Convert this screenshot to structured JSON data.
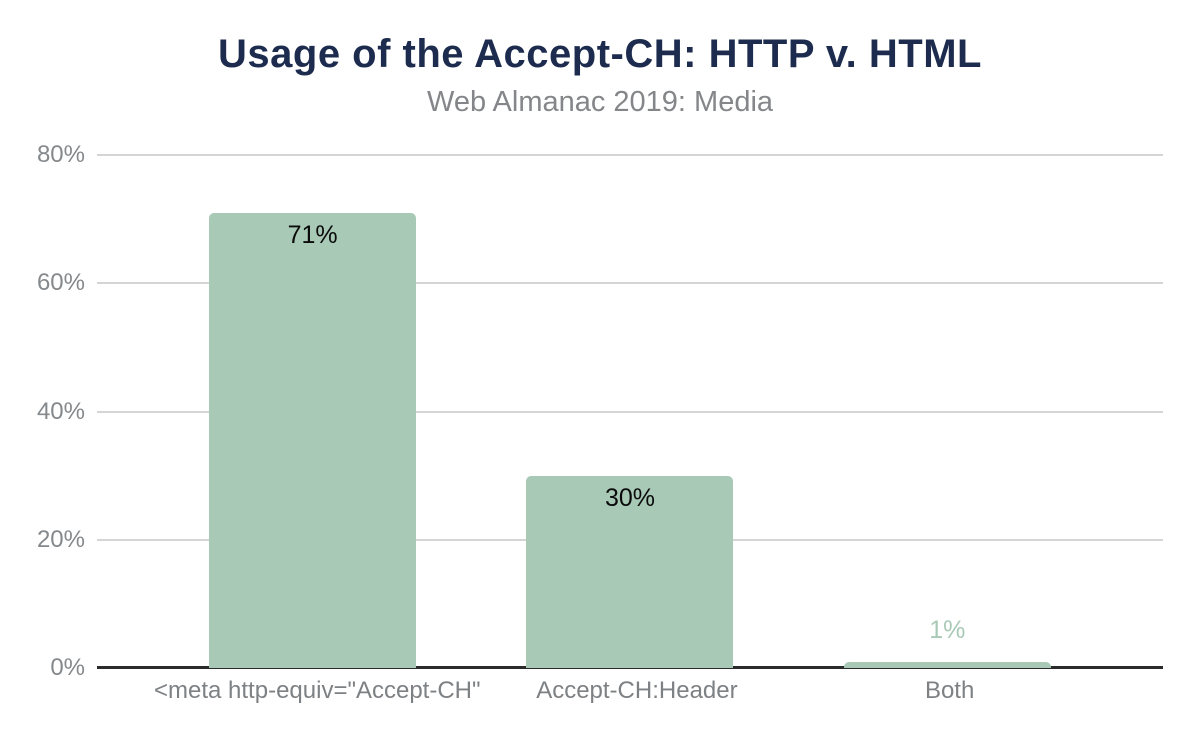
{
  "header": {
    "title": "Usage of the Accept-CH: HTTP v. HTML",
    "subtitle": "Web Almanac 2019: Media"
  },
  "chart_data": {
    "type": "bar",
    "title": "Usage of the Accept-CH: HTTP v. HTML",
    "subtitle": "Web Almanac 2019: Media",
    "categories": [
      "<meta http-equiv=\"Accept-CH\"",
      "Accept-CH:Header",
      "Both"
    ],
    "values": [
      71,
      30,
      1
    ],
    "value_labels": [
      "71%",
      "30%",
      "1%"
    ],
    "xlabel": "",
    "ylabel": "",
    "ylim": [
      0,
      80
    ],
    "yticks": [
      0,
      20,
      40,
      60,
      80
    ],
    "ytick_labels": [
      "0%",
      "20%",
      "40%",
      "60%",
      "80%"
    ],
    "grid": true,
    "legend": false,
    "colors": {
      "bar": "#a9c9b7",
      "title": "#1d2c4e",
      "subtitle": "#848689",
      "ytick_label": "#85898c",
      "xtick_label": "#7e8184",
      "gridline": "#d5d5d5",
      "axis_line": "#2b2b2b",
      "value_label_inside": "#0b0b0b",
      "value_label_outside": "#a9c9b7",
      "background": "#ffffff"
    }
  }
}
